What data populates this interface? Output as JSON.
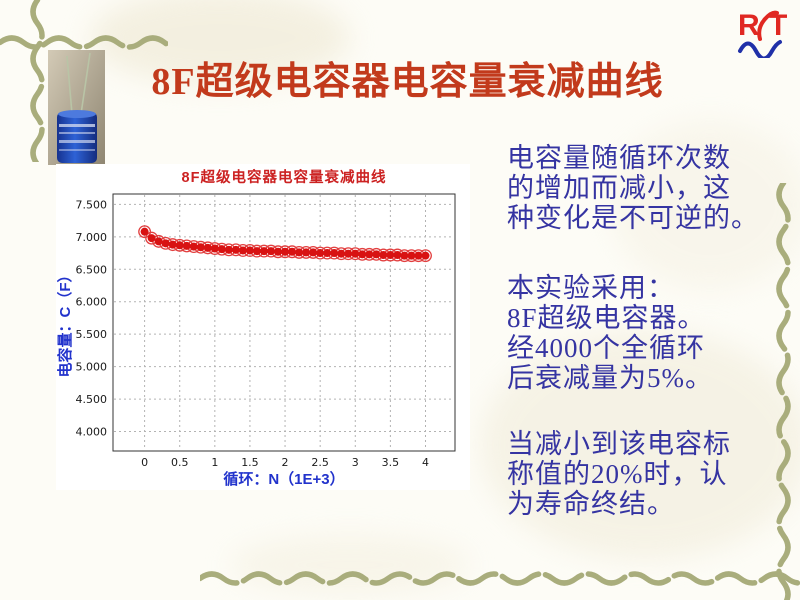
{
  "title": {
    "text": "8F超级电容器电容量衰减曲线",
    "color": "#c23a1c"
  },
  "logo": {
    "r": "R",
    "t": "T",
    "red": "#e02822",
    "blue": "#2030a8"
  },
  "decoration": {
    "color": "#a9ad7c"
  },
  "right_panel": {
    "text_color": "#3534a2",
    "para1": {
      "lines": [
        "电容量随循环次数",
        "的增加而减小，这",
        "种变化是不可逆的。"
      ]
    },
    "para2": {
      "lines": [
        "本实验采用：",
        "8F超级电容器。",
        "经4000个全循环",
        "后衰减量为5%。"
      ]
    },
    "para3": {
      "lines": [
        "当减小到该电容标",
        "称值的20%时，认",
        "为寿命终结。"
      ]
    }
  },
  "chart_data": {
    "type": "scatter",
    "title": "8F超级电容器电容量衰减曲线",
    "title_color": "#cc2222",
    "xlabel": "循环：N（1E+3）",
    "ylabel": "电容量：C（F）",
    "axis_label_color": "#2233cc",
    "marker_color": "#d81212",
    "marker_ring_color": "#e24040",
    "grid": true,
    "legend": "none",
    "xlim": [
      -0.45,
      4.42
    ],
    "ylim": [
      3.7,
      7.66
    ],
    "xticks": [
      0,
      0.5,
      1,
      1.5,
      2,
      2.5,
      3,
      3.5,
      4
    ],
    "xtick_labels": [
      "0",
      "0.5",
      "1",
      "1.5",
      "2",
      "2.5",
      "3",
      "3.5",
      "4"
    ],
    "yticks": [
      4.0,
      4.5,
      5.0,
      5.5,
      6.0,
      6.5,
      7.0,
      7.5
    ],
    "ytick_labels": [
      "4.000",
      "4.500",
      "5.000",
      "5.500",
      "6.000",
      "6.500",
      "7.000",
      "7.500"
    ],
    "x": [
      0,
      0.1,
      0.2,
      0.3,
      0.4,
      0.5,
      0.6,
      0.7,
      0.8,
      0.9,
      1.0,
      1.1,
      1.2,
      1.3,
      1.4,
      1.5,
      1.6,
      1.7,
      1.8,
      1.9,
      2.0,
      2.1,
      2.2,
      2.3,
      2.4,
      2.5,
      2.6,
      2.7,
      2.8,
      2.9,
      3.0,
      3.1,
      3.2,
      3.3,
      3.4,
      3.5,
      3.6,
      3.7,
      3.8,
      3.9,
      4.0
    ],
    "y": [
      7.08,
      6.98,
      6.93,
      6.9,
      6.88,
      6.87,
      6.86,
      6.85,
      6.84,
      6.83,
      6.82,
      6.81,
      6.8,
      6.8,
      6.79,
      6.79,
      6.78,
      6.78,
      6.78,
      6.77,
      6.77,
      6.77,
      6.76,
      6.76,
      6.76,
      6.75,
      6.75,
      6.75,
      6.74,
      6.74,
      6.74,
      6.73,
      6.73,
      6.73,
      6.72,
      6.72,
      6.72,
      6.71,
      6.71,
      6.71,
      6.71
    ]
  }
}
